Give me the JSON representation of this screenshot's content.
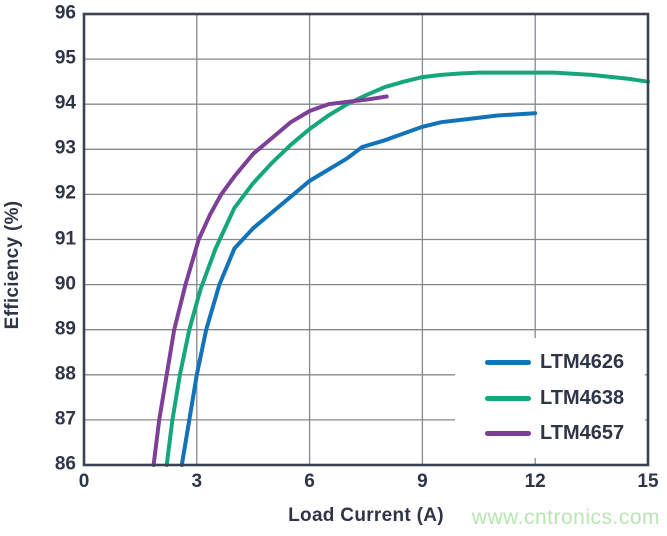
{
  "page": {
    "background": "#ffffff"
  },
  "colors": {
    "text": "#2e3547",
    "grid": "#85888e",
    "frame": "#3b4254"
  },
  "watermark": {
    "text": "www.cntronics.com",
    "color": "#b9e5b4"
  },
  "chart_data": {
    "type": "line",
    "title": "",
    "xlabel": "Load Current (A)",
    "ylabel": "Efficiency (%)",
    "xlim": [
      0,
      15
    ],
    "ylim": [
      86,
      96
    ],
    "x_ticks": [
      0,
      3,
      6,
      9,
      12,
      15
    ],
    "y_ticks": [
      86,
      87,
      88,
      89,
      90,
      91,
      92,
      93,
      94,
      95,
      96
    ],
    "grid": true,
    "legend_position": "lower right",
    "series": [
      {
        "name": "LTM4626",
        "color": "#1273b8",
        "points": [
          [
            2.6,
            86
          ],
          [
            2.8,
            87
          ],
          [
            3.0,
            88
          ],
          [
            3.25,
            89
          ],
          [
            3.6,
            90
          ],
          [
            4.0,
            90.8
          ],
          [
            4.5,
            91.25
          ],
          [
            5.0,
            91.6
          ],
          [
            5.5,
            91.95
          ],
          [
            6.0,
            92.3
          ],
          [
            6.5,
            92.55
          ],
          [
            7.0,
            92.8
          ],
          [
            7.4,
            93.05
          ],
          [
            8.0,
            93.2
          ],
          [
            8.5,
            93.35
          ],
          [
            9.0,
            93.5
          ],
          [
            9.5,
            93.6
          ],
          [
            10.0,
            93.65
          ],
          [
            11.0,
            93.75
          ],
          [
            12.0,
            93.8
          ]
        ]
      },
      {
        "name": "LTM4638",
        "color": "#15a77c",
        "points": [
          [
            2.2,
            86
          ],
          [
            2.35,
            87
          ],
          [
            2.55,
            88
          ],
          [
            2.8,
            89
          ],
          [
            3.1,
            89.9
          ],
          [
            3.5,
            90.8
          ],
          [
            4.0,
            91.7
          ],
          [
            4.5,
            92.25
          ],
          [
            5.0,
            92.7
          ],
          [
            5.5,
            93.1
          ],
          [
            6.0,
            93.45
          ],
          [
            6.5,
            93.75
          ],
          [
            7.0,
            94.0
          ],
          [
            7.5,
            94.2
          ],
          [
            8.0,
            94.38
          ],
          [
            8.5,
            94.5
          ],
          [
            9.0,
            94.6
          ],
          [
            9.5,
            94.65
          ],
          [
            10.0,
            94.68
          ],
          [
            10.5,
            94.7
          ],
          [
            12.5,
            94.7
          ],
          [
            13.5,
            94.65
          ],
          [
            14.5,
            94.56
          ],
          [
            15.0,
            94.5
          ]
        ]
      },
      {
        "name": "LTM4657",
        "color": "#7d3f98",
        "points": [
          [
            1.85,
            86
          ],
          [
            2.0,
            87
          ],
          [
            2.2,
            88
          ],
          [
            2.4,
            89
          ],
          [
            2.7,
            90
          ],
          [
            3.05,
            91
          ],
          [
            3.35,
            91.55
          ],
          [
            3.65,
            92
          ],
          [
            4.0,
            92.4
          ],
          [
            4.5,
            92.9
          ],
          [
            5.0,
            93.25
          ],
          [
            5.5,
            93.6
          ],
          [
            6.0,
            93.85
          ],
          [
            6.5,
            94.0
          ],
          [
            7.0,
            94.05
          ],
          [
            7.5,
            94.1
          ],
          [
            8.05,
            94.17
          ]
        ]
      }
    ]
  }
}
